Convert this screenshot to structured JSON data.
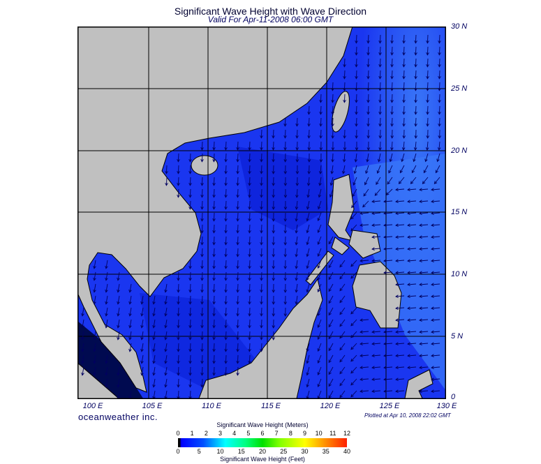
{
  "title": "Significant Wave Height with Wave Direction",
  "subtitle": "Valid For Apr-11-2008 06:00 GMT",
  "map": {
    "lon_labels": [
      "100 E",
      "105 E",
      "110 E",
      "115 E",
      "120 E",
      "125 E",
      "130 E"
    ],
    "lat_labels": [
      "30 N",
      "25 N",
      "20 N",
      "15 N",
      "10 N",
      "5 N",
      "0"
    ],
    "colors": {
      "land": "#c0c0c0",
      "ocean": "#1a36f0",
      "ocean_deep": "#0c22d8",
      "ocean_light": "#3a78f8",
      "arrow": "#000060",
      "grid": "#000000"
    }
  },
  "brand": "oceanweather inc.",
  "plotted": "Plotted at Apr 10, 2008 22:02 GMT",
  "colorbar": {
    "title_meters": "Significant Wave Height (Meters)",
    "title_feet": "Significant Wave Height (Feet)",
    "meters_ticks": [
      "0",
      "1",
      "2",
      "3",
      "4",
      "5",
      "6",
      "7",
      "8",
      "9",
      "10",
      "11",
      "12"
    ],
    "feet_ticks": [
      "0",
      "5",
      "10",
      "15",
      "20",
      "25",
      "30",
      "35",
      "40"
    ]
  }
}
